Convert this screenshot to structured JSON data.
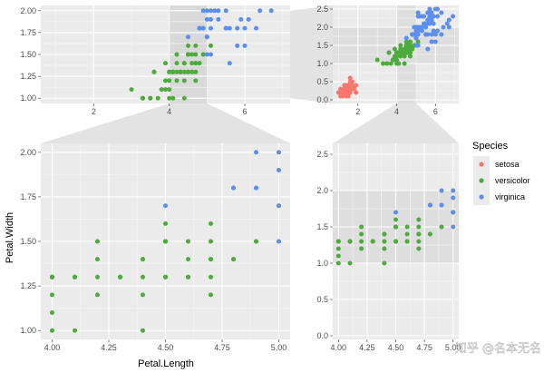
{
  "chart_data": {
    "type": "scatter",
    "title": "",
    "xlabel": "Petal.Length",
    "ylabel": "Petal.Width",
    "legend": {
      "title": "Species",
      "position": "right",
      "entries": [
        {
          "name": "setosa",
          "color": "#F8766D"
        },
        {
          "name": "versicolor",
          "color": "#7CAE00"
        },
        {
          "name": "virginica",
          "color": "#619CFF"
        }
      ]
    },
    "colors": {
      "setosa": "#F8766D",
      "versicolor": "#4dab3c",
      "virginica": "#5b8ef0"
    },
    "zoom_x": [
      4,
      5
    ],
    "zoom_y": [
      1,
      2
    ],
    "panels": [
      {
        "id": "top-left",
        "xlim": [
          0.6,
          7.2
        ],
        "ylim": [
          0.94,
          2.06
        ],
        "xticks": [
          2,
          4,
          6
        ],
        "xticklabels": [
          "2",
          "4",
          "6"
        ],
        "yticks": [
          1,
          1.25,
          1.5,
          1.75,
          2
        ],
        "yticklabels": [
          "1.00",
          "1.25",
          "1.50",
          "1.75",
          "2.00"
        ]
      },
      {
        "id": "top-right",
        "xlim": [
          0.7,
          7.2
        ],
        "ylim": [
          -0.1,
          2.6
        ],
        "xticks": [
          2,
          4,
          6
        ],
        "xticklabels": [
          "2",
          "4",
          "6"
        ],
        "yticks": [
          0,
          0.5,
          1,
          1.5,
          2,
          2.5
        ],
        "yticklabels": [
          "0.0",
          "0.5",
          "1.0",
          "1.5",
          "2.0",
          "2.5"
        ]
      },
      {
        "id": "main",
        "xlim": [
          3.95,
          5.05
        ],
        "ylim": [
          0.95,
          2.05
        ],
        "xticks": [
          4,
          4.25,
          4.5,
          4.75,
          5
        ],
        "xticklabels": [
          "4.00",
          "4.25",
          "4.50",
          "4.75",
          "5.00"
        ],
        "yticks": [
          1,
          1.25,
          1.5,
          1.75,
          2
        ],
        "yticklabels": [
          "1.00",
          "1.25",
          "1.50",
          "1.75",
          "2.00"
        ]
      },
      {
        "id": "bottom-right",
        "xlim": [
          3.95,
          5.05
        ],
        "ylim": [
          -0.05,
          2.65
        ],
        "xticks": [
          4,
          4.25,
          4.5,
          4.75,
          5
        ],
        "xticklabels": [
          "4.00",
          "4.25",
          "4.50",
          "4.75",
          "5.00"
        ],
        "yticks": [
          0,
          0.5,
          1,
          1.5,
          2,
          2.5
        ],
        "yticklabels": [
          "0.0",
          "0.5",
          "1.0",
          "1.5",
          "2.0",
          "2.5"
        ]
      }
    ],
    "series": [
      {
        "name": "setosa",
        "points": [
          [
            1.4,
            0.2
          ],
          [
            1.3,
            0.2
          ],
          [
            1.5,
            0.2
          ],
          [
            1.7,
            0.4
          ],
          [
            1.4,
            0.3
          ],
          [
            1.5,
            0.1
          ],
          [
            1.6,
            0.2
          ],
          [
            1.1,
            0.1
          ],
          [
            1.2,
            0.2
          ],
          [
            1.3,
            0.4
          ],
          [
            1.7,
            0.3
          ],
          [
            1.5,
            0.3
          ],
          [
            1.0,
            0.2
          ],
          [
            1.9,
            0.4
          ],
          [
            1.6,
            0.4
          ],
          [
            1.6,
            0.6
          ],
          [
            1.4,
            0.1
          ],
          [
            1.5,
            0.4
          ],
          [
            1.2,
            0.1
          ],
          [
            1.7,
            0.5
          ],
          [
            1.3,
            0.3
          ],
          [
            1.9,
            0.2
          ],
          [
            1.6,
            0.3
          ],
          [
            1.4,
            0.4
          ],
          [
            1.1,
            0.3
          ],
          [
            1.8,
            0.3
          ],
          [
            1.6,
            0.5
          ]
        ]
      },
      {
        "name": "versicolor",
        "points": [
          [
            4.7,
            1.4
          ],
          [
            4.5,
            1.5
          ],
          [
            4.9,
            1.5
          ],
          [
            4.0,
            1.3
          ],
          [
            4.6,
            1.5
          ],
          [
            4.5,
            1.3
          ],
          [
            4.7,
            1.6
          ],
          [
            3.3,
            1.0
          ],
          [
            4.6,
            1.3
          ],
          [
            3.9,
            1.4
          ],
          [
            3.5,
            1.0
          ],
          [
            4.2,
            1.5
          ],
          [
            4.0,
            1.0
          ],
          [
            4.7,
            1.4
          ],
          [
            3.6,
            1.3
          ],
          [
            4.4,
            1.4
          ],
          [
            4.5,
            1.5
          ],
          [
            4.1,
            1.0
          ],
          [
            4.5,
            1.5
          ],
          [
            3.9,
            1.1
          ],
          [
            4.8,
            1.8
          ],
          [
            4.0,
            1.3
          ],
          [
            4.9,
            1.5
          ],
          [
            4.7,
            1.2
          ],
          [
            4.3,
            1.3
          ],
          [
            4.4,
            1.4
          ],
          [
            4.8,
            1.4
          ],
          [
            5.0,
            1.7
          ],
          [
            4.5,
            1.5
          ],
          [
            3.5,
            1.0
          ],
          [
            3.8,
            1.1
          ],
          [
            3.7,
            1.0
          ],
          [
            3.9,
            1.2
          ],
          [
            5.1,
            1.6
          ],
          [
            4.5,
            1.5
          ],
          [
            4.5,
            1.6
          ],
          [
            4.7,
            1.5
          ],
          [
            4.4,
            1.3
          ],
          [
            4.1,
            1.3
          ],
          [
            4.0,
            1.3
          ],
          [
            4.4,
            1.2
          ],
          [
            4.6,
            1.4
          ],
          [
            4.0,
            1.2
          ],
          [
            3.3,
            1.0
          ],
          [
            4.2,
            1.3
          ],
          [
            4.2,
            1.2
          ],
          [
            4.3,
            1.3
          ],
          [
            3.0,
            1.1
          ],
          [
            4.1,
            1.3
          ],
          [
            4.6,
            1.3
          ],
          [
            4.4,
            1.0
          ],
          [
            4.8,
            1.4
          ],
          [
            4.2,
            1.4
          ],
          [
            3.6,
            1.3
          ],
          [
            4.5,
            1.3
          ],
          [
            4.0,
            1.1
          ],
          [
            4.7,
            1.3
          ],
          [
            4.1,
            1.3
          ],
          [
            3.8,
            1.1
          ],
          [
            4.3,
            1.3
          ]
        ]
      },
      {
        "name": "virginica",
        "points": [
          [
            6.0,
            2.5
          ],
          [
            5.1,
            1.9
          ],
          [
            5.9,
            2.1
          ],
          [
            5.6,
            1.8
          ],
          [
            5.8,
            2.2
          ],
          [
            6.6,
            2.1
          ],
          [
            4.5,
            1.7
          ],
          [
            6.3,
            1.8
          ],
          [
            5.8,
            1.8
          ],
          [
            6.1,
            2.5
          ],
          [
            5.1,
            2.0
          ],
          [
            5.3,
            1.9
          ],
          [
            5.5,
            2.1
          ],
          [
            5.0,
            2.0
          ],
          [
            5.1,
            2.4
          ],
          [
            5.3,
            2.3
          ],
          [
            5.5,
            1.8
          ],
          [
            6.7,
            2.2
          ],
          [
            6.9,
            2.3
          ],
          [
            5.0,
            1.5
          ],
          [
            5.7,
            2.3
          ],
          [
            4.9,
            2.0
          ],
          [
            6.7,
            2.0
          ],
          [
            4.9,
            1.8
          ],
          [
            5.7,
            2.1
          ],
          [
            6.0,
            1.8
          ],
          [
            4.8,
            1.8
          ],
          [
            4.9,
            1.8
          ],
          [
            5.6,
            2.1
          ],
          [
            5.8,
            1.6
          ],
          [
            6.1,
            1.9
          ],
          [
            6.4,
            2.0
          ],
          [
            5.6,
            2.2
          ],
          [
            5.1,
            1.5
          ],
          [
            5.6,
            1.4
          ],
          [
            6.1,
            2.3
          ],
          [
            5.6,
            2.4
          ],
          [
            5.5,
            1.8
          ],
          [
            4.8,
            1.8
          ],
          [
            5.4,
            2.1
          ],
          [
            5.6,
            2.4
          ],
          [
            5.1,
            2.3
          ],
          [
            5.9,
            2.3
          ],
          [
            5.7,
            2.5
          ],
          [
            5.2,
            2.3
          ],
          [
            5.0,
            1.9
          ],
          [
            5.2,
            2.0
          ],
          [
            5.4,
            2.3
          ],
          [
            5.1,
            1.8
          ],
          [
            5.0,
            1.7
          ],
          [
            5.5,
            2.0
          ],
          [
            5.8,
            2.4
          ],
          [
            5.3,
            2.0
          ],
          [
            5.9,
            1.9
          ],
          [
            6.3,
            2.4
          ],
          [
            6.0,
            1.6
          ]
        ]
      }
    ]
  },
  "watermark": "知乎 @名本无名"
}
